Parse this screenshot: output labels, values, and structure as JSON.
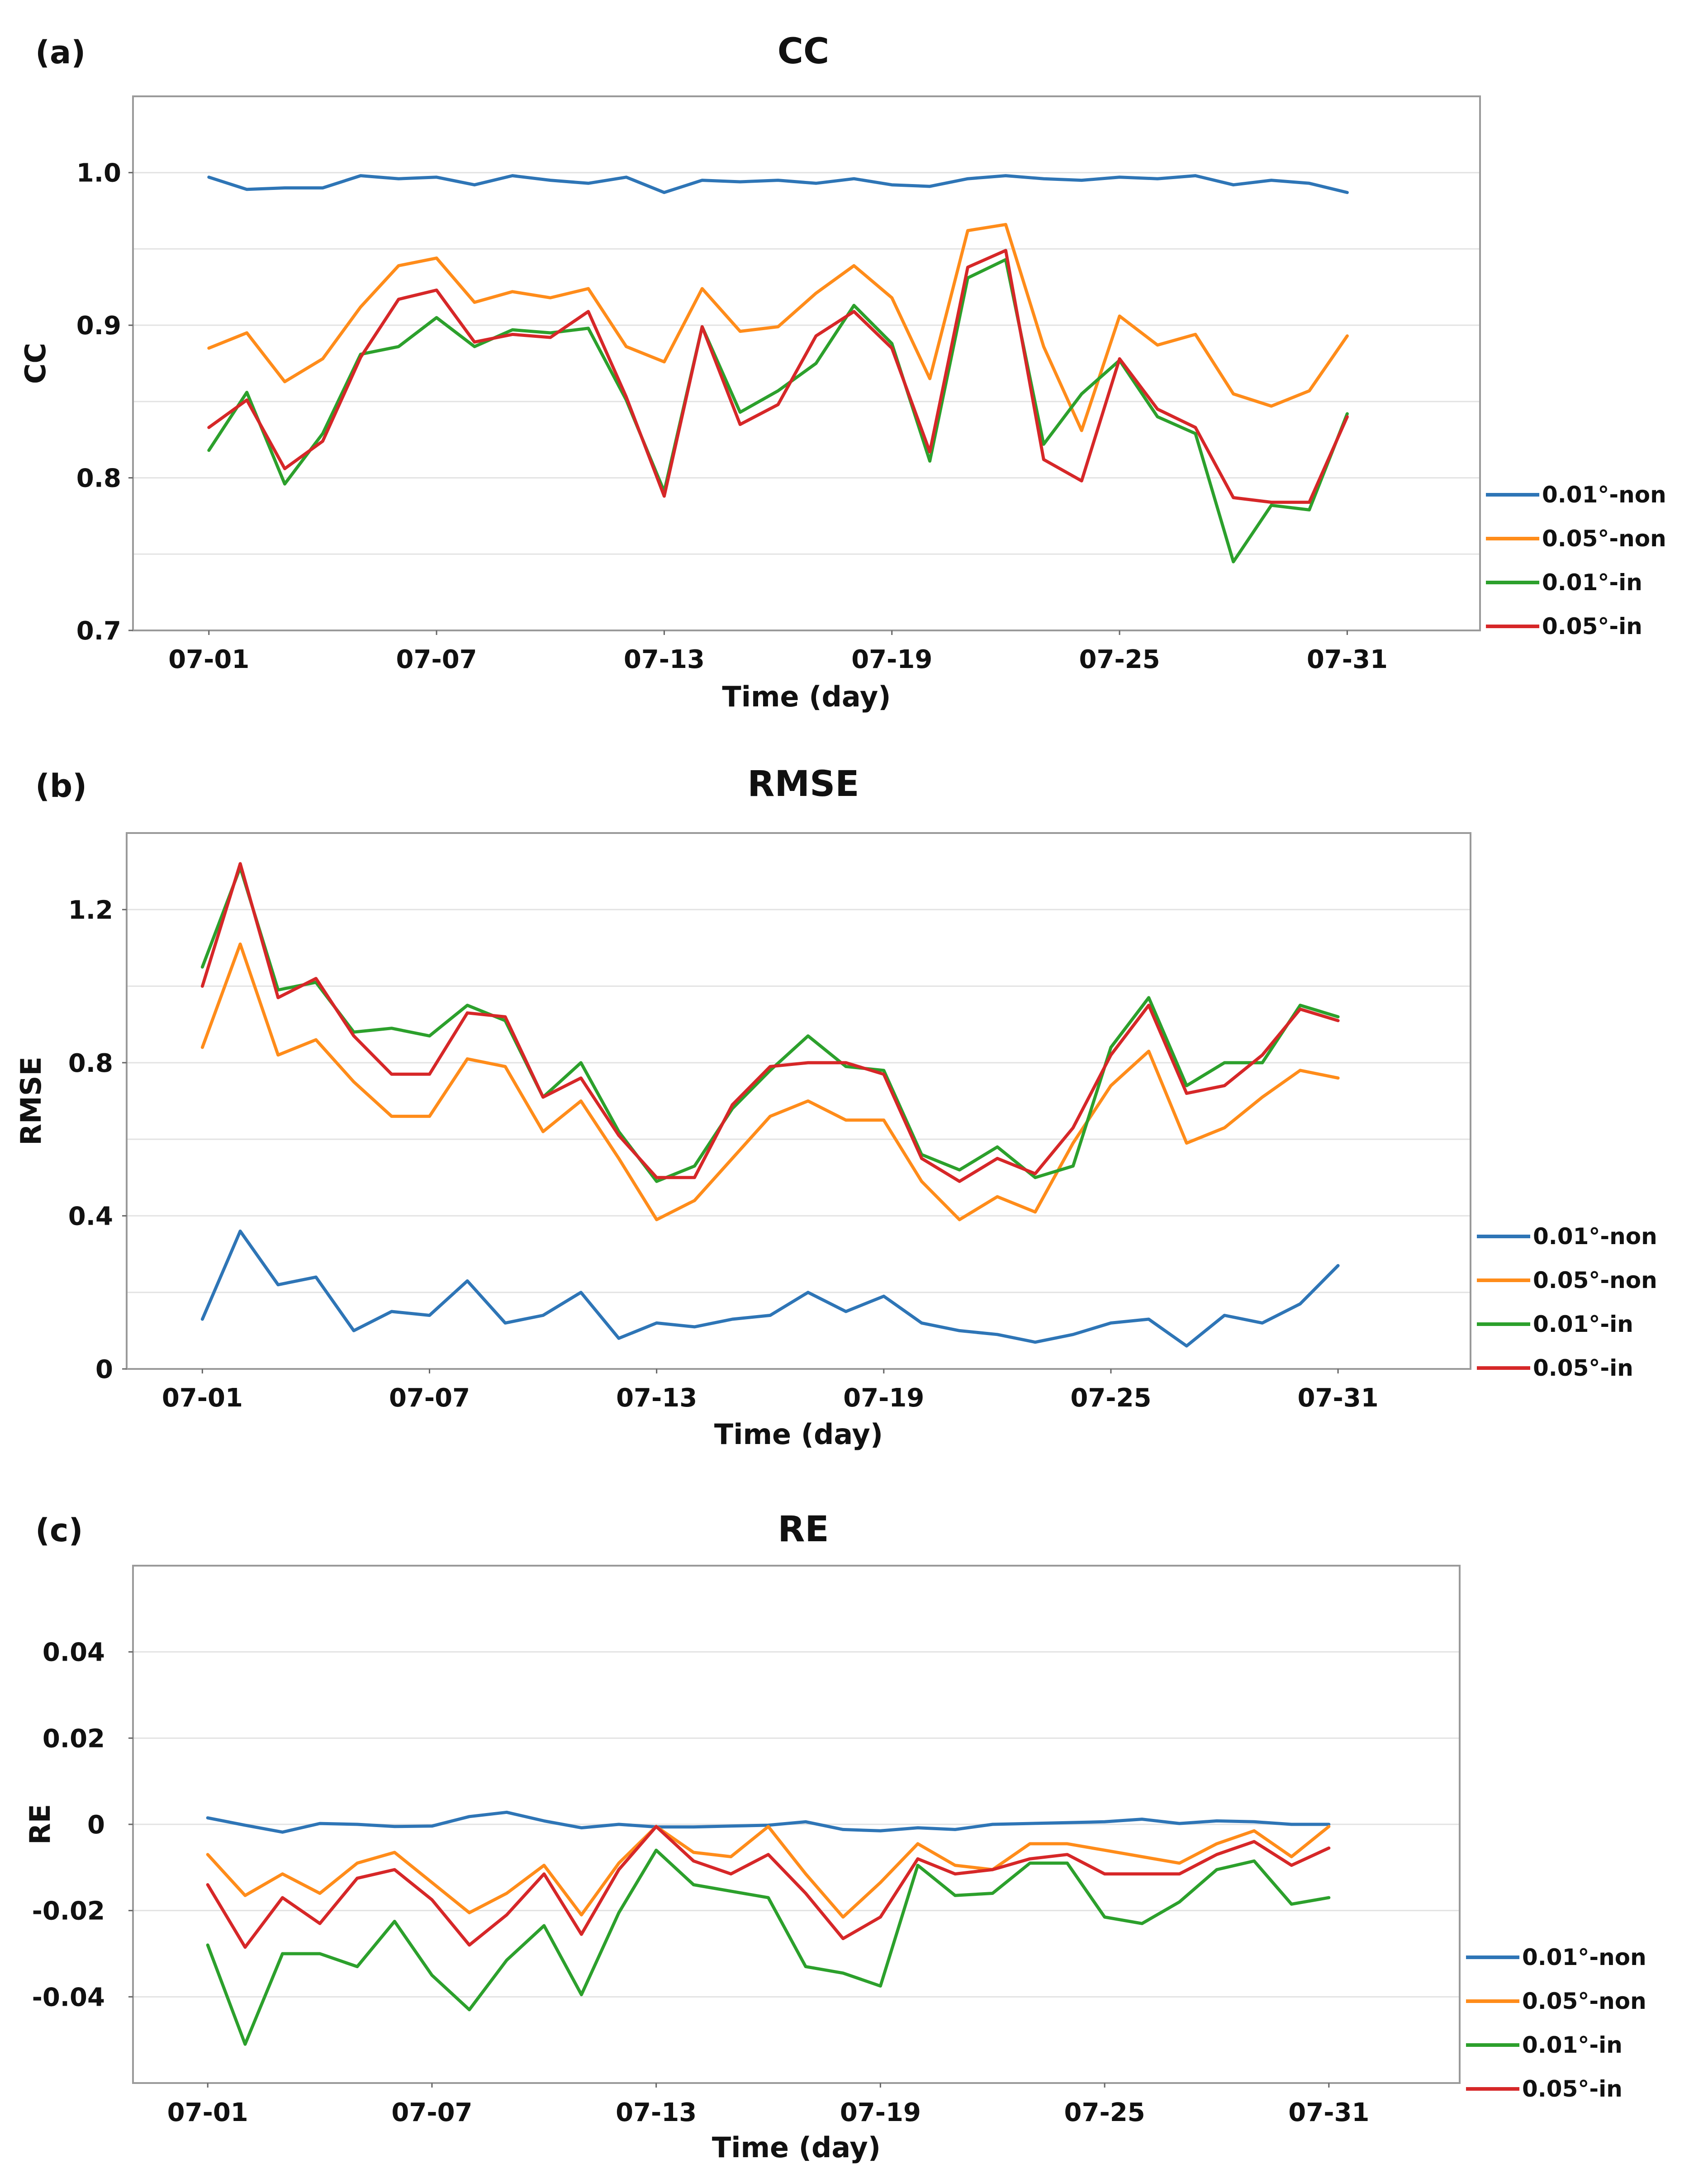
{
  "chart_data": [
    {
      "panel": "(a)",
      "type": "line",
      "title": "CC",
      "xlabel": "Time (day)",
      "ylabel": "CC",
      "ylim": [
        0.7,
        1.05
      ],
      "yticks": [
        0.7,
        0.8,
        0.9,
        1.0
      ],
      "ytick_labels": [
        "0.7",
        "0.8",
        "0.9",
        "1.0"
      ],
      "ygrid": [
        0.75,
        0.8,
        0.85,
        0.9,
        0.95,
        1.0
      ],
      "x": [
        1,
        2,
        3,
        4,
        5,
        6,
        7,
        8,
        9,
        10,
        11,
        12,
        13,
        14,
        15,
        16,
        17,
        18,
        19,
        20,
        21,
        22,
        23,
        24,
        25,
        26,
        27,
        28,
        29,
        30,
        31
      ],
      "xlim": [
        -1,
        34.5
      ],
      "xticks": [
        1,
        7,
        13,
        19,
        25,
        31
      ],
      "xtick_labels": [
        "07-01",
        "07-07",
        "07-13",
        "07-19",
        "07-25",
        "07-31"
      ],
      "legend_position": "right",
      "series": [
        {
          "name": "0.01°-non",
          "color": "#2e75b6",
          "values": [
            0.997,
            0.989,
            0.99,
            0.99,
            0.998,
            0.996,
            0.997,
            0.992,
            0.998,
            0.995,
            0.993,
            0.997,
            0.987,
            0.995,
            0.994,
            0.995,
            0.993,
            0.996,
            0.992,
            0.991,
            0.996,
            0.998,
            0.996,
            0.995,
            0.997,
            0.996,
            0.998,
            0.992,
            0.995,
            0.993,
            0.987
          ]
        },
        {
          "name": "0.05°-non",
          "color": "#ff8c1a",
          "values": [
            0.885,
            0.895,
            0.863,
            0.878,
            0.912,
            0.939,
            0.944,
            0.915,
            0.922,
            0.918,
            0.924,
            0.886,
            0.876,
            0.924,
            0.896,
            0.899,
            0.921,
            0.939,
            0.918,
            0.865,
            0.962,
            0.966,
            0.886,
            0.831,
            0.906,
            0.887,
            0.894,
            0.855,
            0.847,
            0.857,
            0.893
          ]
        },
        {
          "name": "0.01°-in",
          "color": "#2ca02c",
          "values": [
            0.818,
            0.856,
            0.796,
            0.829,
            0.881,
            0.886,
            0.905,
            0.886,
            0.897,
            0.895,
            0.898,
            0.851,
            0.791,
            0.899,
            0.843,
            0.857,
            0.875,
            0.913,
            0.888,
            0.811,
            0.931,
            0.943,
            0.822,
            0.855,
            0.877,
            0.84,
            0.829,
            0.745,
            0.782,
            0.779,
            0.842
          ]
        },
        {
          "name": "0.05°-in",
          "color": "#d62728",
          "values": [
            0.833,
            0.851,
            0.806,
            0.824,
            0.879,
            0.917,
            0.923,
            0.889,
            0.894,
            0.892,
            0.909,
            0.853,
            0.788,
            0.899,
            0.835,
            0.848,
            0.893,
            0.909,
            0.885,
            0.817,
            0.938,
            0.949,
            0.812,
            0.798,
            0.878,
            0.845,
            0.833,
            0.787,
            0.784,
            0.784,
            0.84
          ]
        }
      ]
    },
    {
      "panel": "(b)",
      "type": "line",
      "title": "RMSE",
      "xlabel": "Time (day)",
      "ylabel": "RMSE",
      "ylim": [
        0,
        1.4
      ],
      "yticks": [
        0,
        0.4,
        0.8,
        1.2
      ],
      "ytick_labels": [
        "0",
        "0.4",
        "0.8",
        "1.2"
      ],
      "ygrid": [
        0.2,
        0.4,
        0.6,
        0.8,
        1.0,
        1.2
      ],
      "x": [
        1,
        2,
        3,
        4,
        5,
        6,
        7,
        8,
        9,
        10,
        11,
        12,
        13,
        14,
        15,
        16,
        17,
        18,
        19,
        20,
        21,
        22,
        23,
        24,
        25,
        26,
        27,
        28,
        29,
        30,
        31
      ],
      "xlim": [
        -1,
        34.5
      ],
      "xticks": [
        1,
        7,
        13,
        19,
        25,
        31
      ],
      "xtick_labels": [
        "07-01",
        "07-07",
        "07-13",
        "07-19",
        "07-25",
        "07-31"
      ],
      "legend_position": "right",
      "series": [
        {
          "name": "0.01°-non",
          "color": "#2e75b6",
          "values": [
            0.13,
            0.36,
            0.22,
            0.24,
            0.1,
            0.15,
            0.14,
            0.23,
            0.12,
            0.14,
            0.2,
            0.08,
            0.12,
            0.11,
            0.13,
            0.14,
            0.2,
            0.15,
            0.19,
            0.12,
            0.1,
            0.09,
            0.07,
            0.09,
            0.12,
            0.13,
            0.06,
            0.14,
            0.12,
            0.17,
            0.27
          ]
        },
        {
          "name": "0.05°-non",
          "color": "#ff8c1a",
          "values": [
            0.84,
            1.11,
            0.82,
            0.86,
            0.75,
            0.66,
            0.66,
            0.81,
            0.79,
            0.62,
            0.7,
            0.55,
            0.39,
            0.44,
            0.55,
            0.66,
            0.7,
            0.65,
            0.65,
            0.49,
            0.39,
            0.45,
            0.41,
            0.59,
            0.74,
            0.83,
            0.59,
            0.63,
            0.71,
            0.78,
            0.76
          ]
        },
        {
          "name": "0.01°-in",
          "color": "#2ca02c",
          "values": [
            1.05,
            1.31,
            0.99,
            1.01,
            0.88,
            0.89,
            0.87,
            0.95,
            0.91,
            0.71,
            0.8,
            0.62,
            0.49,
            0.53,
            0.68,
            0.78,
            0.87,
            0.79,
            0.78,
            0.56,
            0.52,
            0.58,
            0.5,
            0.53,
            0.84,
            0.97,
            0.74,
            0.8,
            0.8,
            0.95,
            0.92
          ]
        },
        {
          "name": "0.05°-in",
          "color": "#d62728",
          "values": [
            1.0,
            1.32,
            0.97,
            1.02,
            0.87,
            0.77,
            0.77,
            0.93,
            0.92,
            0.71,
            0.76,
            0.61,
            0.5,
            0.5,
            0.69,
            0.79,
            0.8,
            0.8,
            0.77,
            0.55,
            0.49,
            0.55,
            0.51,
            0.63,
            0.82,
            0.95,
            0.72,
            0.74,
            0.82,
            0.94,
            0.91
          ]
        }
      ]
    },
    {
      "panel": "(c)",
      "type": "line",
      "title": "RE",
      "xlabel": "Time (day)",
      "ylabel": "RE",
      "ylim": [
        -0.06,
        0.06
      ],
      "yticks": [
        -0.04,
        -0.02,
        0,
        0.02,
        0.04
      ],
      "ytick_labels": [
        "-0.04",
        "-0.02",
        "0",
        "0.02",
        "0.04"
      ],
      "ygrid": [
        -0.04,
        -0.02,
        0,
        0.02,
        0.04
      ],
      "x": [
        1,
        2,
        3,
        4,
        5,
        6,
        7,
        8,
        9,
        10,
        11,
        12,
        13,
        14,
        15,
        16,
        17,
        18,
        19,
        20,
        21,
        22,
        23,
        24,
        25,
        26,
        27,
        28,
        29,
        30,
        31
      ],
      "xlim": [
        -1,
        34.5
      ],
      "xticks": [
        1,
        7,
        13,
        19,
        25,
        31
      ],
      "xtick_labels": [
        "07-01",
        "07-07",
        "07-13",
        "07-19",
        "07-25",
        "07-31"
      ],
      "legend_position": "right",
      "series": [
        {
          "name": "0.01°-non",
          "color": "#2e75b6",
          "values": [
            0.0015,
            -0.0002,
            -0.0018,
            0.0002,
            0.0,
            -0.0005,
            -0.0004,
            0.0018,
            0.0028,
            0.0008,
            -0.0008,
            0.0,
            -0.0006,
            -0.0006,
            -0.0004,
            -0.0002,
            0.0006,
            -0.0012,
            -0.0015,
            -0.0008,
            -0.0012,
            0.0,
            0.0002,
            0.0004,
            0.0006,
            0.0012,
            0.0002,
            0.0008,
            0.0006,
            0.0,
            0.0
          ]
        },
        {
          "name": "0.05°-non",
          "color": "#ff8c1a",
          "values": [
            -0.007,
            -0.0165,
            -0.0115,
            -0.016,
            -0.009,
            -0.0065,
            -0.0135,
            -0.0205,
            -0.016,
            -0.0095,
            -0.021,
            -0.009,
            -0.0005,
            -0.0065,
            -0.0075,
            -0.0005,
            -0.0115,
            -0.0215,
            -0.0135,
            -0.0045,
            -0.0095,
            -0.0105,
            -0.0045,
            -0.0045,
            -0.006,
            -0.0075,
            -0.009,
            -0.0045,
            -0.0015,
            -0.0075,
            -0.0005
          ]
        },
        {
          "name": "0.01°-in",
          "color": "#2ca02c",
          "values": [
            -0.028,
            -0.051,
            -0.03,
            -0.03,
            -0.033,
            -0.0225,
            -0.035,
            -0.043,
            -0.0315,
            -0.0235,
            -0.0395,
            -0.0205,
            -0.006,
            -0.014,
            -0.0155,
            -0.017,
            -0.033,
            -0.0345,
            -0.0375,
            -0.0095,
            -0.0165,
            -0.016,
            -0.009,
            -0.009,
            -0.0215,
            -0.023,
            -0.018,
            -0.0105,
            -0.0085,
            -0.0185,
            -0.017
          ]
        },
        {
          "name": "0.05°-in",
          "color": "#d62728",
          "values": [
            -0.014,
            -0.0285,
            -0.017,
            -0.023,
            -0.0125,
            -0.0105,
            -0.0175,
            -0.028,
            -0.021,
            -0.0115,
            -0.0255,
            -0.0105,
            -0.0005,
            -0.0085,
            -0.0115,
            -0.007,
            -0.016,
            -0.0265,
            -0.0215,
            -0.008,
            -0.0115,
            -0.0105,
            -0.008,
            -0.007,
            -0.0115,
            -0.0115,
            -0.0115,
            -0.007,
            -0.004,
            -0.0095,
            -0.0055
          ]
        }
      ]
    }
  ]
}
